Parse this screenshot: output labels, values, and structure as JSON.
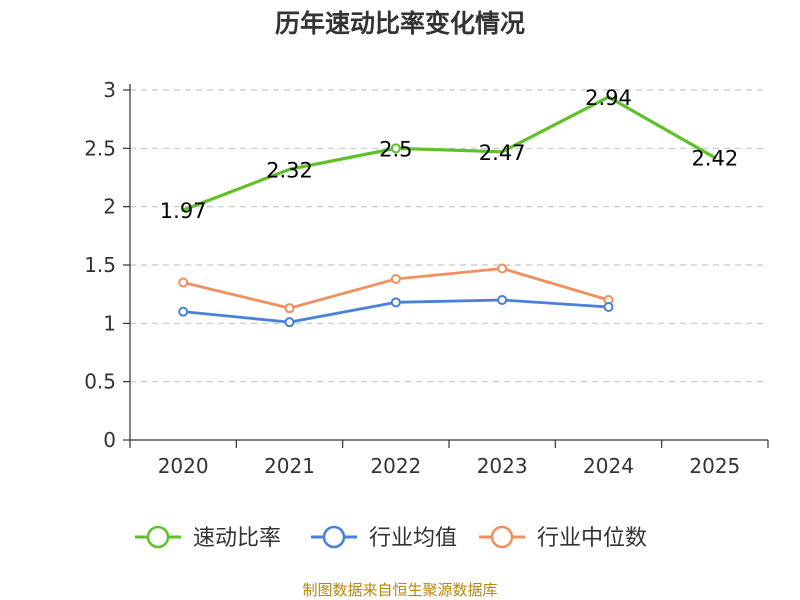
{
  "chart_data": {
    "type": "line",
    "title": "历年速动比率变化情况",
    "categories": [
      "2020",
      "2021",
      "2022",
      "2023",
      "2024",
      "2025"
    ],
    "y_ticks": [
      "0",
      "0.5",
      "1",
      "1.5",
      "2",
      "2.5",
      "3"
    ],
    "ylim": [
      0,
      3
    ],
    "grid": true,
    "legend_position": "bottom",
    "series": [
      {
        "name": "速动比率",
        "color": "#5dc22a",
        "values": [
          1.97,
          2.32,
          2.5,
          2.47,
          2.94,
          2.42
        ],
        "labels": [
          "1.97",
          "2.32",
          "2.5",
          "2.47",
          "2.94",
          "2.42"
        ],
        "markers": [
          false,
          false,
          true,
          false,
          false,
          false
        ]
      },
      {
        "name": "行业均值",
        "color": "#4a7fdc",
        "values": [
          1.1,
          1.01,
          1.18,
          1.2,
          1.14,
          null
        ],
        "markers": [
          true,
          true,
          true,
          true,
          true,
          false
        ]
      },
      {
        "name": "行业中位数",
        "color": "#f28f5c",
        "values": [
          1.35,
          1.13,
          1.38,
          1.47,
          1.2,
          null
        ],
        "markers": [
          true,
          true,
          true,
          true,
          true,
          false
        ]
      }
    ]
  },
  "source_text": "制图数据来自恒生聚源数据库"
}
